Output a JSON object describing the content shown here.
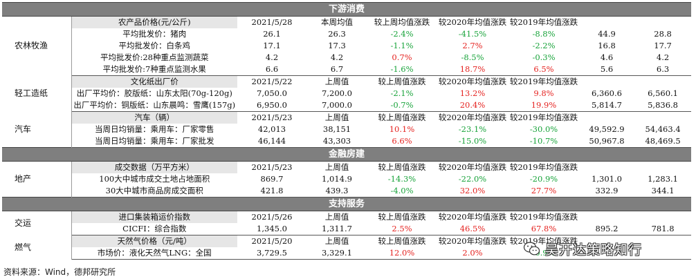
{
  "sections": [
    {
      "title": "下游消费",
      "groups": [
        {
          "category": "农林牧渔",
          "header": [
            "农产品价格(元/公斤)",
            "2021/5/28",
            "本周均值",
            "较上周均值涨跌",
            "较2020年均值涨跌",
            "较2019年均值涨跌",
            "",
            ""
          ],
          "rows": [
            {
              "label": "平均批发价：猪肉",
              "cur": "26.1",
              "avg": "26.3",
              "wow": "-2.4%",
              "vs2020": "-41.5%",
              "vs2019": "-8.8%",
              "c7": "44.9",
              "c8": "28.8"
            },
            {
              "label": "平均批发价：白条鸡",
              "cur": "17.1",
              "avg": "17.3",
              "wow": "-1.1%",
              "vs2020": "2.7%",
              "vs2019": "-2.2%",
              "c7": "16.8",
              "c8": "17.7"
            },
            {
              "label": "平均批发价:28种重点监测蔬菜",
              "cur": "4.2",
              "avg": "4.2",
              "wow": "0.7%",
              "vs2020": "-8.5%",
              "vs2019": "-0.3%",
              "c7": "4.6",
              "c8": "4.2"
            },
            {
              "label": "平均批发价:7种重点监测水果",
              "cur": "6.6",
              "avg": "6.7",
              "wow": "-1.6%",
              "vs2020": "18.7%",
              "vs2019": "6.5%",
              "c7": "5.6",
              "c8": "6.3"
            }
          ]
        },
        {
          "category": "轻工造纸",
          "header": [
            "文化纸出厂价",
            "2021/5/22",
            "上周值",
            "较上周值涨跌",
            "较2020年均值涨跌",
            "较2019年均值涨跌",
            "",
            ""
          ],
          "rows": [
            {
              "label": "出厂平均价：胶版纸：山东太阳(70g-120g)",
              "cur": "7,050.0",
              "avg": "7,200.0",
              "wow": "-2.1%",
              "vs2020": "13.2%",
              "vs2019": "9.8%",
              "c7": "6,360.6",
              "c8": "6,560.1"
            },
            {
              "label": "出厂平均价：铜版纸：山东晨鸣：雪鹰(157g)",
              "cur": "6,950.0",
              "avg": "7,000.0",
              "wow": "-0.7%",
              "vs2020": "20.4%",
              "vs2019": "19.9%",
              "c7": "5,814.7",
              "c8": "5,836.8"
            }
          ]
        },
        {
          "category": "汽车",
          "header": [
            "汽车（辆）",
            "2021/5/23",
            "上周值",
            "较上周值涨跌",
            "较2020年均值涨跌",
            "较2019年均值涨跌",
            "",
            ""
          ],
          "rows": [
            {
              "label": "当周日均销量：乘用车：厂家零售",
              "cur": "42,013",
              "avg": "38,151",
              "wow": "10.1%",
              "vs2020": "-23.1%",
              "vs2019": "-30.0%",
              "c7": "49,592.9",
              "c8": "54,463.4"
            },
            {
              "label": "当周日均销量：乘用车：厂家批发",
              "cur": "46,144",
              "avg": "43,303",
              "wow": "6.6%",
              "vs2020": "-15.0%",
              "vs2019": "-10.7%",
              "c7": "50,967.8",
              "c8": "48,469.5"
            }
          ]
        }
      ]
    },
    {
      "title": "金融房建",
      "groups": [
        {
          "category": "地产",
          "header": [
            "成交数据（万平方米）",
            "2021/5/23",
            "上周值",
            "较上周值涨跌",
            "较2020年均值涨跌",
            "较2019年均值涨跌",
            "",
            ""
          ],
          "rows": [
            {
              "label": "100大中城市成交土地占地面积",
              "cur": "869.7",
              "avg": "1,014.9",
              "wow": "-14.3%",
              "vs2020": "-22.0%",
              "vs2019": "-20.9%",
              "c7": "1,301.0",
              "c8": "1,283.1"
            },
            {
              "label": "30大中城市商品房成交面积",
              "cur": "421.8",
              "avg": "439.3",
              "wow": "-4.0%",
              "vs2020": "32.0%",
              "vs2019": "27.7%",
              "c7": "332.9",
              "c8": "344.1"
            }
          ]
        }
      ]
    },
    {
      "title": "支持服务",
      "groups": [
        {
          "category": "交运",
          "header": [
            "进口集装箱运价指数",
            "2021/5/26",
            "上周值",
            "较上周值涨跌",
            "较2020年均值涨跌",
            "较2019年均值涨跌",
            "",
            ""
          ],
          "rows": [
            {
              "label": "CICFI：综合指数",
              "cur": "1,345.0",
              "avg": "1,311.7",
              "wow": "2.5%",
              "vs2020": "46.5%",
              "vs2019": "67.8%",
              "c7": "895.2",
              "c8": "781.8"
            }
          ]
        },
        {
          "category": "燃气",
          "header": [
            "天然气价格（元/吨）",
            "2021/5/20",
            "上周值",
            "较上周值涨跌",
            "较2020年均值涨跌",
            "较2019年均值涨跌",
            "",
            ""
          ],
          "rows": [
            {
              "label": "市场价：液化天然气LNG：全国",
              "cur": "3,729.5",
              "avg": "3,329.1",
              "wow": "12.0%",
              "vs2020": "2.0%",
              "vs2019": "-0.9%",
              "c7": "",
              "c8": ""
            }
          ]
        }
      ]
    }
  ],
  "source": "资料来源：Wind，德邦研究所",
  "watermark": "吴开达策略知行",
  "colors": {
    "up": "#e5221f",
    "down": "#18a33a",
    "section_bg": "#7f7f7f",
    "header_bg": "#e6e6e6"
  }
}
